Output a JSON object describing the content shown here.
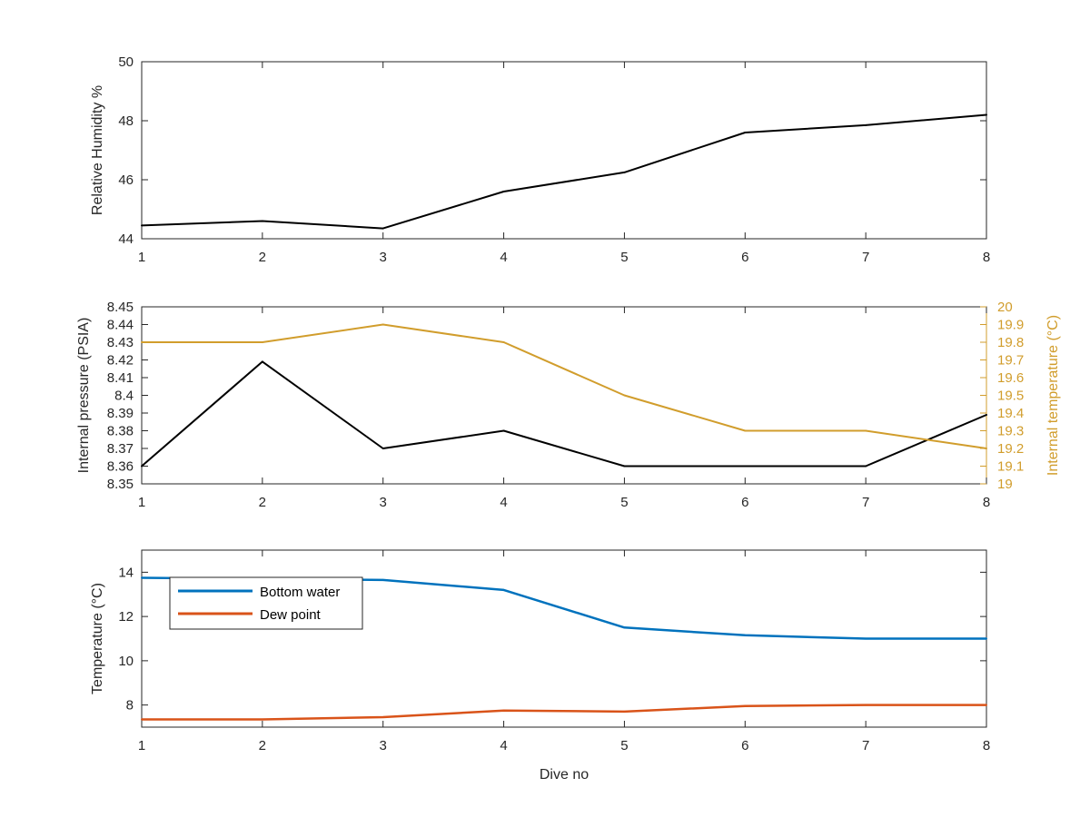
{
  "chart_data": [
    {
      "type": "line",
      "xlabel": "",
      "ylabel": "Relative Humidity %",
      "xlim": [
        1,
        8
      ],
      "ylim": [
        44,
        50
      ],
      "xticks": [
        1,
        2,
        3,
        4,
        5,
        6,
        7,
        8
      ],
      "yticks": [
        44,
        46,
        48,
        50
      ],
      "x": [
        1,
        2,
        3,
        4,
        5,
        6,
        7,
        8
      ],
      "series": [
        {
          "name": "",
          "color": "#000000",
          "values": [
            44.45,
            44.6,
            44.35,
            45.6,
            46.25,
            47.6,
            47.85,
            48.2
          ]
        }
      ]
    },
    {
      "type": "line",
      "xlabel": "",
      "ylabel": "Internal pressure (PSIA)",
      "ylabel_right": "Internal temperature (°C)",
      "xlim": [
        1,
        8
      ],
      "ylim": [
        8.35,
        8.45
      ],
      "ylim_right": [
        19,
        20
      ],
      "xticks": [
        1,
        2,
        3,
        4,
        5,
        6,
        7,
        8
      ],
      "yticks": [
        "8.35",
        "8.36",
        "8.37",
        "8.38",
        "8.39",
        "8.4",
        "8.41",
        "8.42",
        "8.43",
        "8.44",
        "8.45"
      ],
      "yticks_right": [
        "19",
        "19.1",
        "19.2",
        "19.3",
        "19.4",
        "19.5",
        "19.6",
        "19.7",
        "19.8",
        "19.9",
        "20"
      ],
      "x": [
        1,
        2,
        3,
        4,
        5,
        6,
        7,
        8
      ],
      "series": [
        {
          "name": "",
          "axis": "left",
          "color": "#000000",
          "values": [
            8.36,
            8.419,
            8.37,
            8.38,
            8.36,
            8.36,
            8.36,
            8.389
          ]
        },
        {
          "name": "",
          "axis": "right",
          "color": "#D19D2C",
          "values": [
            19.8,
            19.8,
            19.9,
            19.8,
            19.5,
            19.3,
            19.3,
            19.2
          ]
        }
      ]
    },
    {
      "type": "line",
      "xlabel": "Dive no",
      "ylabel": "Temperature (°C)",
      "xlim": [
        1,
        8
      ],
      "ylim": [
        7,
        15
      ],
      "xticks": [
        1,
        2,
        3,
        4,
        5,
        6,
        7,
        8
      ],
      "yticks": [
        8,
        10,
        12,
        14
      ],
      "x": [
        1,
        2,
        3,
        4,
        5,
        6,
        7,
        8
      ],
      "legend": "top-left",
      "series": [
        {
          "name": "Bottom water",
          "color": "#0072BD",
          "values": [
            13.75,
            13.7,
            13.65,
            13.2,
            11.5,
            11.15,
            11.0,
            11.0
          ]
        },
        {
          "name": "Dew point",
          "color": "#D95319",
          "values": [
            7.35,
            7.35,
            7.45,
            7.75,
            7.7,
            7.95,
            8.0,
            8.0
          ]
        }
      ]
    }
  ]
}
